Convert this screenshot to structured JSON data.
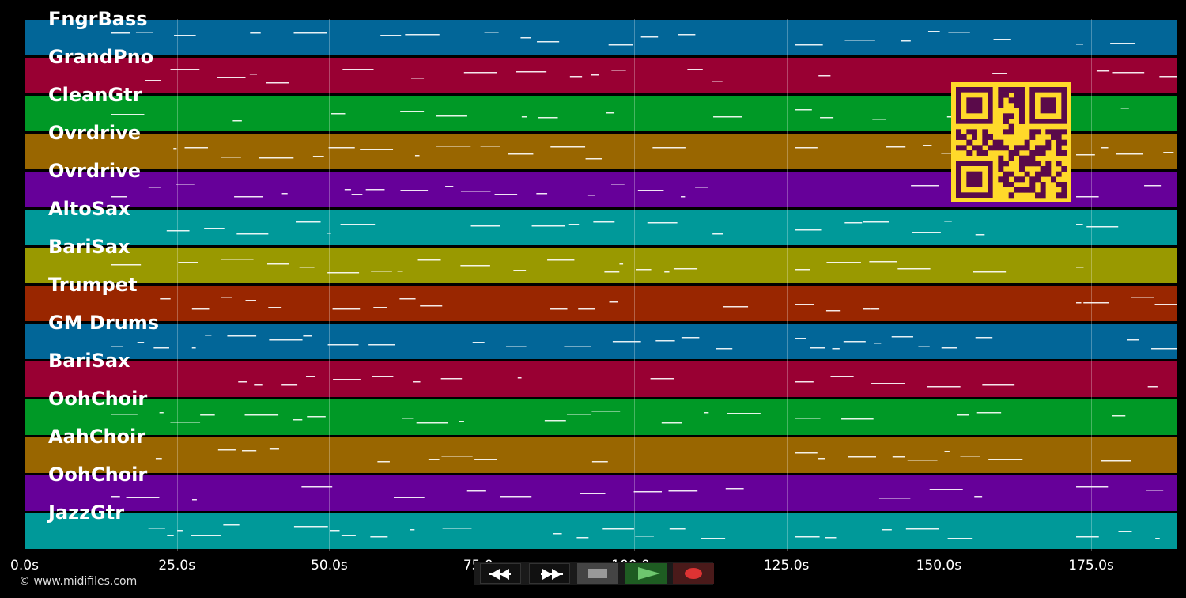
{
  "tracks": [
    {
      "name": "FngrBass",
      "color": "#026698"
    },
    {
      "name": "GrandPno",
      "color": "#990033"
    },
    {
      "name": "CleanGtr",
      "color": "#009926"
    },
    {
      "name": "Ovrdrive",
      "color": "#996600"
    },
    {
      "name": "Ovrdrive",
      "color": "#660099"
    },
    {
      "name": "AltoSax",
      "color": "#009999"
    },
    {
      "name": "BariSax",
      "color": "#999900"
    },
    {
      "name": "Trumpet",
      "color": "#992600"
    },
    {
      "name": "GM Drums",
      "color": "#026698"
    },
    {
      "name": "BariSax",
      "color": "#990033"
    },
    {
      "name": "OohChoir",
      "color": "#009926"
    },
    {
      "name": "AahChoir",
      "color": "#996600"
    },
    {
      "name": "OohChoir",
      "color": "#660099"
    },
    {
      "name": "JazzGtr",
      "color": "#009999"
    }
  ],
  "timeline": {
    "duration_s": 189,
    "ticks": [
      "0.0s",
      "25.0s",
      "50.0s",
      "75.0s",
      "100.0s",
      "125.0s",
      "150.0s",
      "175.0s"
    ],
    "tick_values": [
      0,
      25,
      50,
      75,
      100,
      125,
      150,
      175
    ]
  },
  "copyright": "© www.midifiles.com",
  "transport": {
    "rewind": "rewind-icon",
    "fast_forward": "fast-forward-icon",
    "stop": "stop-icon",
    "play": "play-icon",
    "record": "record-icon"
  },
  "qr_code": {
    "color": "#ffd92a",
    "module_color": "#5a0a4a"
  }
}
